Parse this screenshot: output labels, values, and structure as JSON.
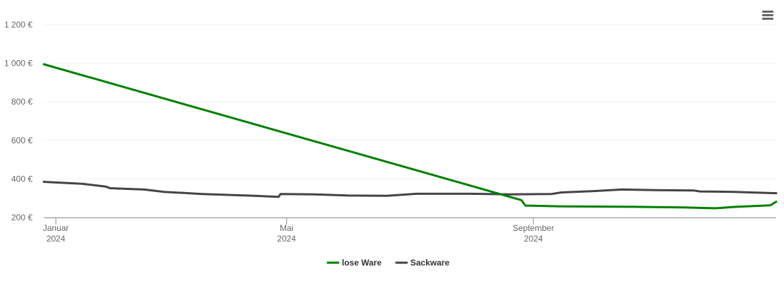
{
  "chart_data": {
    "type": "line",
    "title": "",
    "xlabel": "",
    "ylabel": "",
    "ylim": [
      200,
      1200
    ],
    "xlim": [
      "2024-01-01",
      "2024-12-31"
    ],
    "grid": true,
    "legend_position": "bottom",
    "y_ticks": [
      {
        "value": 200,
        "label": "200 €"
      },
      {
        "value": 400,
        "label": "400 €"
      },
      {
        "value": 600,
        "label": "600 €"
      },
      {
        "value": 800,
        "label": "800 €"
      },
      {
        "value": 1000,
        "label": "1 000 €"
      },
      {
        "value": 1200,
        "label": "1 200 €"
      }
    ],
    "x_ticks": [
      {
        "date": "2024-01-07",
        "month": "Januar",
        "year": "2024"
      },
      {
        "date": "2024-05-01",
        "month": "Mai",
        "year": "2024"
      },
      {
        "date": "2024-09-01",
        "month": "September",
        "year": "2024"
      }
    ],
    "series": [
      {
        "name": "lose Ware",
        "color": "#008000",
        "points": [
          [
            "2024-01-01",
            995
          ],
          [
            "2024-08-26",
            290
          ],
          [
            "2024-08-28",
            262
          ],
          [
            "2024-09-15",
            258
          ],
          [
            "2024-10-15",
            256
          ],
          [
            "2024-11-15",
            252
          ],
          [
            "2024-11-30",
            248
          ],
          [
            "2024-12-01",
            248
          ],
          [
            "2024-12-10",
            255
          ],
          [
            "2024-12-28",
            263
          ],
          [
            "2024-12-31",
            282
          ]
        ]
      },
      {
        "name": "Sackware",
        "color": "#434348",
        "points": [
          [
            "2024-01-01",
            385
          ],
          [
            "2024-01-20",
            375
          ],
          [
            "2024-02-01",
            360
          ],
          [
            "2024-02-03",
            352
          ],
          [
            "2024-02-20",
            345
          ],
          [
            "2024-03-01",
            333
          ],
          [
            "2024-03-20",
            322
          ],
          [
            "2024-04-15",
            313
          ],
          [
            "2024-04-27",
            307
          ],
          [
            "2024-04-28",
            322
          ],
          [
            "2024-05-15",
            320
          ],
          [
            "2024-06-01",
            314
          ],
          [
            "2024-06-20",
            313
          ],
          [
            "2024-07-05",
            323
          ],
          [
            "2024-08-01",
            323
          ],
          [
            "2024-08-20",
            320
          ],
          [
            "2024-09-10",
            322
          ],
          [
            "2024-09-15",
            330
          ],
          [
            "2024-10-01",
            337
          ],
          [
            "2024-10-15",
            345
          ],
          [
            "2024-11-01",
            342
          ],
          [
            "2024-11-20",
            340
          ],
          [
            "2024-11-23",
            335
          ],
          [
            "2024-12-10",
            333
          ],
          [
            "2024-12-31",
            326
          ]
        ]
      }
    ]
  }
}
